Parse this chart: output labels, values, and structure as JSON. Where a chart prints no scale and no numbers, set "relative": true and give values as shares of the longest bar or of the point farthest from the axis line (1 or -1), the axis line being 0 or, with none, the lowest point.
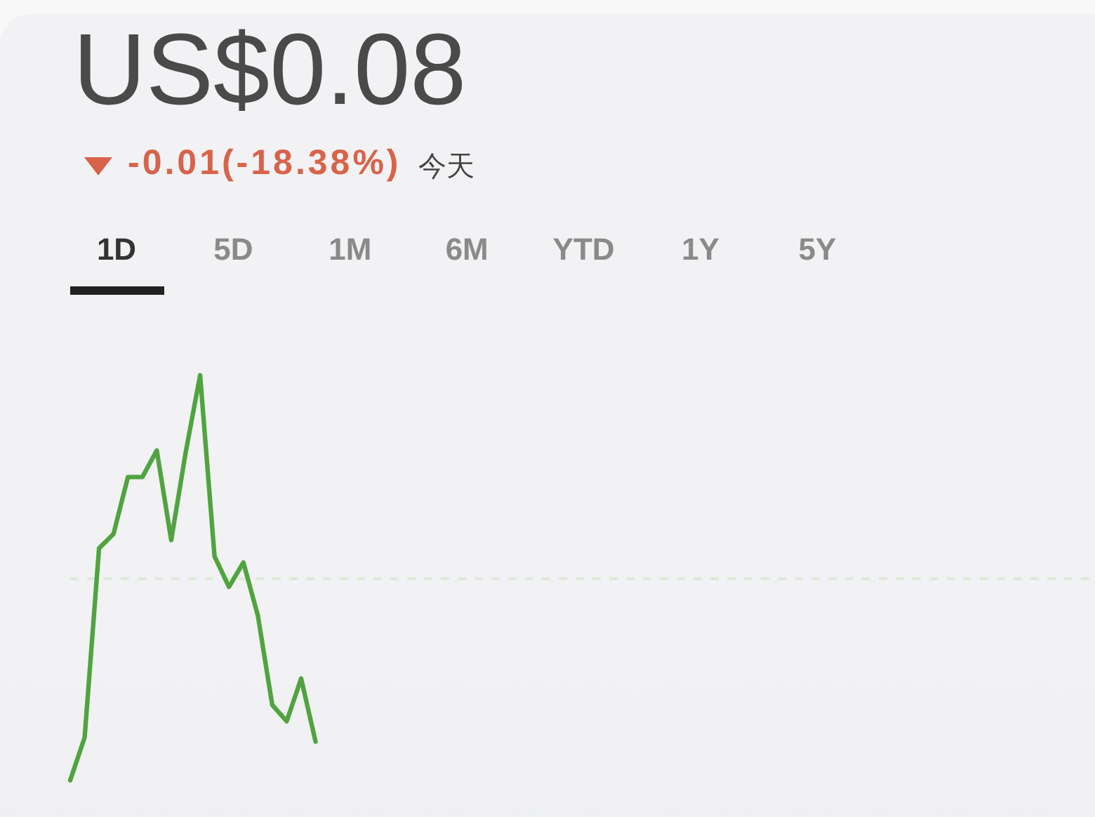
{
  "chart_data": {
    "type": "line",
    "title": "US$0.08",
    "subtitle": "-0.01(-18.38%)",
    "annotations": [
      "今天",
      "1D",
      "5D",
      "1M",
      "6M",
      "YTD",
      "1Y",
      "5Y"
    ],
    "categories": [
      null,
      null,
      null,
      null,
      null,
      null,
      null,
      null,
      null,
      null,
      null,
      null,
      null,
      null,
      null,
      null,
      null,
      null,
      null,
      null,
      null,
      null,
      null,
      null,
      null,
      null,
      null,
      null,
      null,
      null,
      null,
      null,
      null,
      null,
      null,
      null,
      null,
      null,
      null,
      null,
      null,
      null,
      null,
      null,
      null,
      null,
      null,
      null,
      null,
      null,
      null,
      null,
      null,
      null,
      null,
      null,
      null,
      null,
      null,
      null,
      null,
      null,
      null,
      null,
      null,
      null,
      null,
      null,
      null,
      null,
      null,
      null
    ],
    "relative": true,
    "series": [
      {
        "color": "#50a43f",
        "values": [
          -0.99,
          -0.78,
          0.15,
          0.22,
          0.5,
          0.5,
          0.63,
          0.19,
          0.62,
          1,
          0.11,
          -0.04,
          0.08,
          -0.18,
          -0.62,
          -0.7,
          -0.49,
          -0.8,
          null,
          null,
          null,
          null,
          null,
          null,
          null,
          null,
          null,
          null,
          null,
          null,
          null,
          null,
          null,
          null,
          null,
          null,
          null,
          null,
          null,
          null,
          null,
          null,
          null,
          null,
          null,
          null,
          null,
          null,
          null,
          null,
          null,
          null,
          null,
          null,
          null,
          null,
          null,
          null,
          null,
          null,
          null,
          null,
          null,
          null,
          null,
          null,
          null,
          null,
          null,
          null,
          null,
          null
        ]
      }
    ],
    "ref_lines": [
      {
        "axis": "y",
        "value": 0,
        "color": "#dde9d8",
        "line_style": "dashed"
      }
    ]
  }
}
